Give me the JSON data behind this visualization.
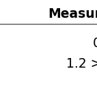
{
  "title": "Measur",
  "row1": "0",
  "row2": "1.2 >",
  "row3": ".",
  "bg_color": "#ffffff",
  "header_bold": true,
  "header_fontsize": 13.5,
  "row_fontsize": 13.5,
  "line_color": "#555555",
  "text_color": "#000000",
  "figsize": [
    1.42,
    1.42
  ],
  "dpi": 100
}
